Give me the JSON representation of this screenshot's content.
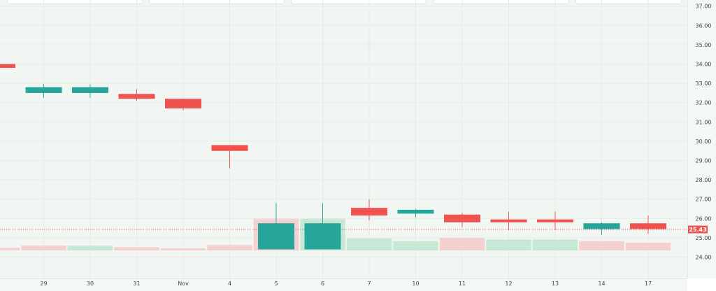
{
  "chart_data": {
    "type": "candlestick",
    "categories": [
      "",
      "29",
      "30",
      "31",
      "Nov",
      "4",
      "5",
      "6",
      "7",
      "10",
      "11",
      "12",
      "13",
      "14",
      "17"
    ],
    "candles": [
      {
        "open": 34.0,
        "high": 34.0,
        "low": 33.8,
        "close": 33.8,
        "direction": "down"
      },
      {
        "open": 32.5,
        "high": 32.95,
        "low": 32.25,
        "close": 32.8,
        "direction": "up"
      },
      {
        "open": 32.5,
        "high": 32.95,
        "low": 32.25,
        "close": 32.8,
        "direction": "up"
      },
      {
        "open": 32.45,
        "high": 32.7,
        "low": 32.1,
        "close": 32.2,
        "direction": "down"
      },
      {
        "open": 32.2,
        "high": 32.2,
        "low": 31.6,
        "close": 31.7,
        "direction": "down"
      },
      {
        "open": 29.8,
        "high": 29.8,
        "low": 28.6,
        "close": 29.5,
        "direction": "down"
      },
      {
        "open": 24.4,
        "high": 26.8,
        "low": 24.4,
        "close": 25.75,
        "direction": "up"
      },
      {
        "open": 24.4,
        "high": 26.8,
        "low": 24.4,
        "close": 25.75,
        "direction": "up"
      },
      {
        "open": 26.55,
        "high": 27.0,
        "low": 25.9,
        "close": 26.15,
        "direction": "down"
      },
      {
        "open": 26.25,
        "high": 26.5,
        "low": 26.05,
        "close": 26.45,
        "direction": "up"
      },
      {
        "open": 26.2,
        "high": 26.3,
        "low": 25.55,
        "close": 25.8,
        "direction": "down"
      },
      {
        "open": 25.95,
        "high": 26.35,
        "low": 25.4,
        "close": 25.8,
        "direction": "down"
      },
      {
        "open": 25.95,
        "high": 26.35,
        "low": 25.4,
        "close": 25.8,
        "direction": "down"
      },
      {
        "open": 25.45,
        "high": 25.8,
        "low": 25.15,
        "close": 25.75,
        "direction": "up"
      },
      {
        "open": 25.75,
        "high": 26.15,
        "low": 25.2,
        "close": 25.45,
        "direction": "down"
      }
    ],
    "volume": [
      {
        "value": 5,
        "direction": "down"
      },
      {
        "value": 9,
        "direction": "down"
      },
      {
        "value": 9,
        "direction": "up"
      },
      {
        "value": 6,
        "direction": "down"
      },
      {
        "value": 4,
        "direction": "down"
      },
      {
        "value": 10,
        "direction": "down"
      },
      {
        "value": 58,
        "direction": "down"
      },
      {
        "value": 58,
        "direction": "up"
      },
      {
        "value": 22,
        "direction": "up"
      },
      {
        "value": 17,
        "direction": "up"
      },
      {
        "value": 23,
        "direction": "down"
      },
      {
        "value": 20,
        "direction": "up"
      },
      {
        "value": 20,
        "direction": "up"
      },
      {
        "value": 17,
        "direction": "down"
      },
      {
        "value": 14,
        "direction": "down"
      }
    ],
    "volume_max": 100,
    "y_ticks": [
      "24.00",
      "25.00",
      "26.00",
      "27.00",
      "28.00",
      "29.00",
      "30.00",
      "31.00",
      "32.00",
      "33.00",
      "34.00",
      "35.00",
      "36.00",
      "37.00"
    ],
    "ylim": [
      23.5,
      37.0
    ],
    "last_price": {
      "value": 25.43,
      "label": "25.43"
    },
    "colors": {
      "up": "#26a69a",
      "down": "#ef5350",
      "up_volume": "#c6e8d4",
      "down_volume": "#f5d0d0",
      "grid": "#e6ece7",
      "price_line": "#ef5350"
    },
    "grid": true
  }
}
